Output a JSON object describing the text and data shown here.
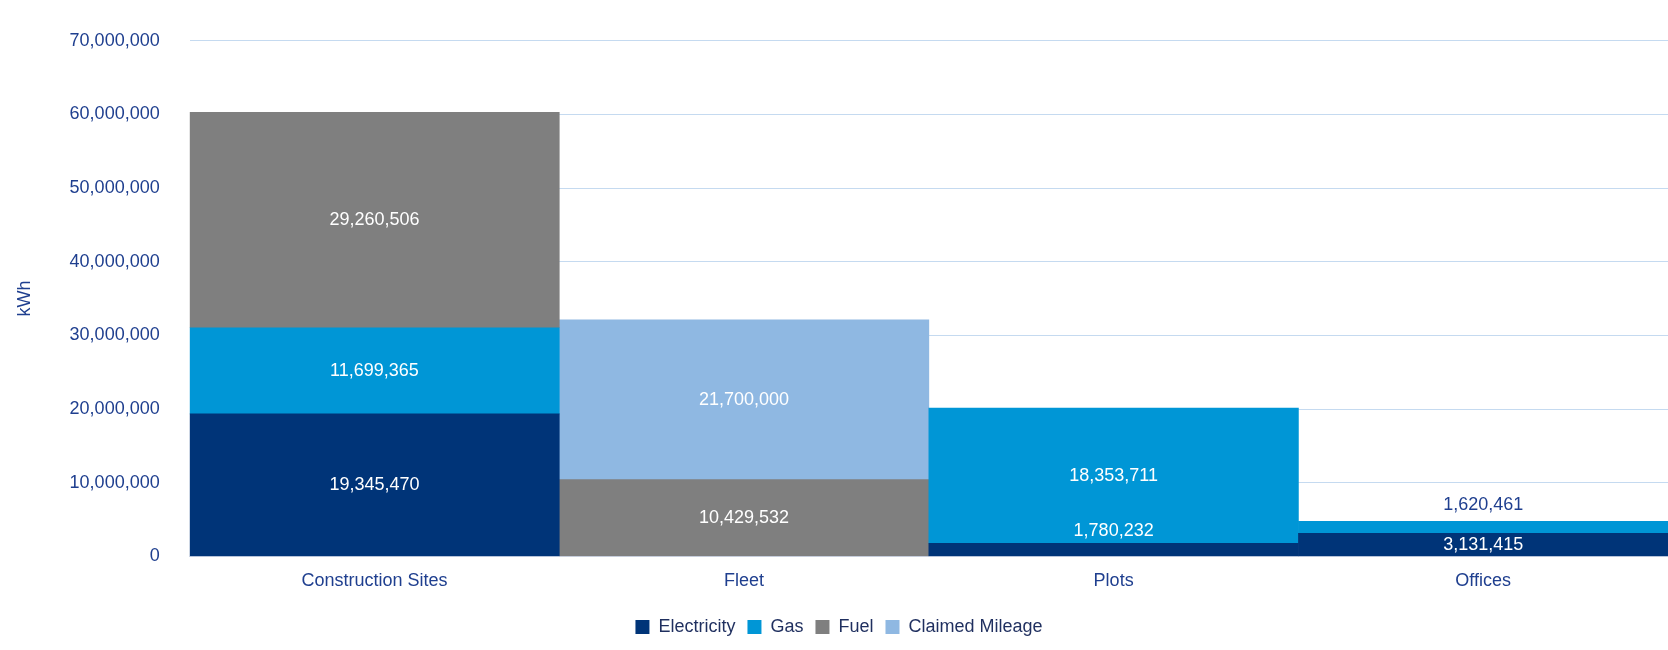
{
  "chart_data": {
    "type": "bar",
    "stacked": true,
    "ylabel": "kWh",
    "categories": [
      "Construction Sites",
      "Fleet",
      "Plots",
      "Offices"
    ],
    "series": [
      {
        "name": "Electricity",
        "color": "#003478",
        "values": [
          19345470,
          null,
          1780232,
          3131415
        ],
        "value_labels": [
          "19,345,470",
          null,
          "1,780,232",
          "3,131,415"
        ]
      },
      {
        "name": "Gas",
        "color": "#0096d6",
        "values": [
          11699365,
          null,
          18353711,
          1620461
        ],
        "value_labels": [
          "11,699,365",
          null,
          "18,353,711",
          "1,620,461"
        ]
      },
      {
        "name": "Fuel",
        "color": "#7f7f7f",
        "values": [
          29260506,
          10429532,
          null,
          null
        ],
        "value_labels": [
          "29,260,506",
          "10,429,532",
          null,
          null
        ]
      },
      {
        "name": "Claimed Mileage",
        "color": "#8fb8e2",
        "values": [
          null,
          21700000,
          null,
          null
        ],
        "value_labels": [
          null,
          "21,700,000",
          null,
          null
        ]
      }
    ],
    "ylim": [
      0,
      70000000
    ],
    "yticks": [
      0,
      {
        "value": 10000000,
        "label": "10,000,000"
      },
      {
        "value": 20000000,
        "label": "20,000,000"
      },
      {
        "value": 30000000,
        "label": "30,000,000"
      },
      {
        "value": 40000000,
        "label": "40,000,000"
      },
      {
        "value": 50000000,
        "label": "50,000,000"
      },
      {
        "value": 60000000,
        "label": "60,000,000"
      },
      {
        "value": 70000000,
        "label": "70,000,000"
      }
    ],
    "grid": "y",
    "legend": "bottom"
  }
}
